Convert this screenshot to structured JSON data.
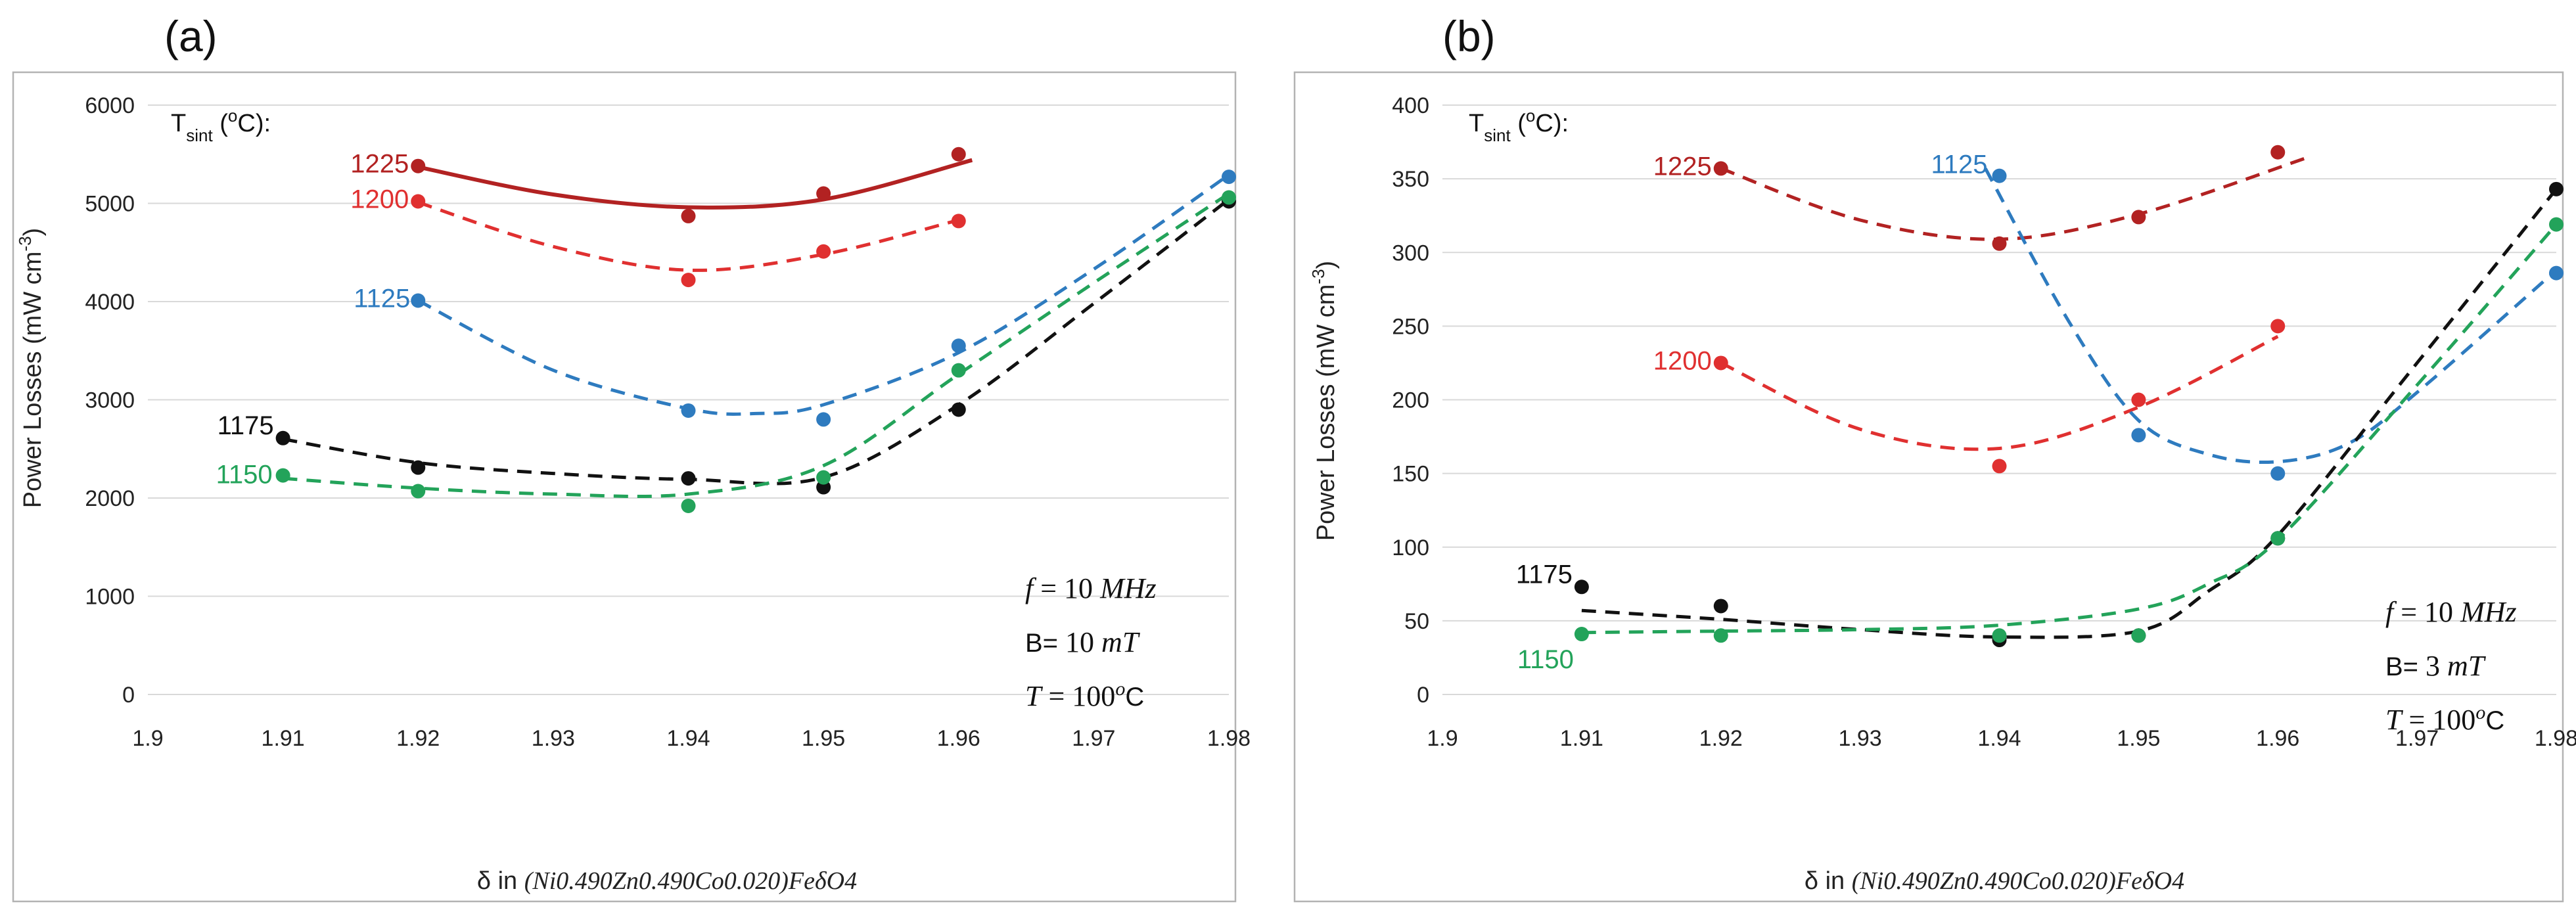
{
  "chart_data": [
    {
      "type": "scatter",
      "panel_label": "(a)",
      "title": "",
      "xlabel": "δ in (Ni0.490Zn0.490Co0.020)FeδO4",
      "xlabel_parts": {
        "prefix": "δ in",
        "formula": "(Ni0.490Zn0.490Co0.020)FeδO4"
      },
      "ylabel": "Power Losses (mW cm-3)",
      "xlim": [
        1.9,
        1.98
      ],
      "ylim": [
        0,
        6000
      ],
      "xticks": [
        "1.9",
        "1.91",
        "1.92",
        "1.93",
        "1.94",
        "1.95",
        "1.96",
        "1.97",
        "1.98"
      ],
      "yticks": [
        "0",
        "1000",
        "2000",
        "3000",
        "4000",
        "5000",
        "6000"
      ],
      "legend_title": "Tsint (oC):",
      "annotations": [
        "f = 10 MHz",
        "B= 10 mT",
        "T = 100oC"
      ],
      "series": [
        {
          "name": "1225",
          "color": "#b22222",
          "line": "solid",
          "x": [
            1.92,
            1.94,
            1.95,
            1.96
          ],
          "y": [
            5380,
            4870,
            5100,
            5500
          ],
          "fit": [
            [
              1.92,
              5370
            ],
            [
              1.93,
              5090
            ],
            [
              1.94,
              4960
            ],
            [
              1.95,
              5040
            ],
            [
              1.961,
              5440
            ]
          ]
        },
        {
          "name": "1200",
          "color": "#e03030",
          "line": "dashed",
          "x": [
            1.92,
            1.94,
            1.95,
            1.96
          ],
          "y": [
            5020,
            4220,
            4510,
            4820
          ],
          "fit": [
            [
              1.92,
              5010
            ],
            [
              1.93,
              4560
            ],
            [
              1.94,
              4320
            ],
            [
              1.95,
              4480
            ],
            [
              1.96,
              4830
            ]
          ]
        },
        {
          "name": "1125",
          "color": "#2e7bbf",
          "line": "dashed",
          "x": [
            1.92,
            1.94,
            1.95,
            1.96,
            1.98
          ],
          "y": [
            4010,
            2890,
            2800,
            3550,
            5270
          ],
          "fit": [
            [
              1.92,
              4010
            ],
            [
              1.93,
              3300
            ],
            [
              1.94,
              2910
            ],
            [
              1.945,
              2860
            ],
            [
              1.95,
              2950
            ],
            [
              1.96,
              3480
            ],
            [
              1.97,
              4330
            ],
            [
              1.98,
              5290
            ]
          ]
        },
        {
          "name": "1175",
          "color": "#111111",
          "line": "dashed",
          "x": [
            1.91,
            1.92,
            1.94,
            1.95,
            1.96,
            1.98
          ],
          "y": [
            2610,
            2310,
            2200,
            2110,
            2900,
            5020
          ],
          "fit": [
            [
              1.91,
              2600
            ],
            [
              1.92,
              2360
            ],
            [
              1.93,
              2250
            ],
            [
              1.94,
              2190
            ],
            [
              1.95,
              2210
            ],
            [
              1.96,
              2950
            ],
            [
              1.97,
              3980
            ],
            [
              1.98,
              5040
            ]
          ]
        },
        {
          "name": "1150",
          "color": "#23a35a",
          "line": "dashed",
          "x": [
            1.91,
            1.92,
            1.94,
            1.95,
            1.96,
            1.98
          ],
          "y": [
            2230,
            2070,
            1920,
            2210,
            3300,
            5060
          ],
          "fit": [
            [
              1.91,
              2200
            ],
            [
              1.92,
              2100
            ],
            [
              1.93,
              2040
            ],
            [
              1.94,
              2040
            ],
            [
              1.95,
              2330
            ],
            [
              1.96,
              3260
            ],
            [
              1.97,
              4190
            ],
            [
              1.98,
              5100
            ]
          ]
        }
      ]
    },
    {
      "type": "scatter",
      "panel_label": "(b)",
      "title": "",
      "xlabel": "δ in (Ni0.490Zn0.490Co0.020)FeδO4",
      "xlabel_parts": {
        "prefix": "δ in",
        "formula": "(Ni0.490Zn0.490Co0.020)FeδO4"
      },
      "ylabel": "Power Losses (mW cm-3)",
      "xlim": [
        1.9,
        1.98
      ],
      "ylim": [
        0,
        400
      ],
      "xticks": [
        "1.9",
        "1.91",
        "1.92",
        "1.93",
        "1.94",
        "1.95",
        "1.96",
        "1.97",
        "1.98"
      ],
      "yticks": [
        "0",
        "50",
        "100",
        "150",
        "200",
        "250",
        "300",
        "350",
        "400"
      ],
      "legend_title": "Tsint (oC):",
      "annotations": [
        "f = 10 MHz",
        "B= 3 mT",
        "T = 100oC"
      ],
      "series": [
        {
          "name": "1225",
          "color": "#b22222",
          "line": "dashed",
          "x": [
            1.92,
            1.94,
            1.95,
            1.96
          ],
          "y": [
            357,
            306,
            324,
            368
          ],
          "fit": [
            [
              1.92,
              357
            ],
            [
              1.93,
              322
            ],
            [
              1.94,
              309
            ],
            [
              1.95,
              326
            ],
            [
              1.962,
              364
            ]
          ]
        },
        {
          "name": "1200",
          "color": "#e03030",
          "line": "dashed",
          "x": [
            1.92,
            1.94,
            1.95,
            1.96
          ],
          "y": [
            225,
            155,
            200,
            250
          ],
          "fit": [
            [
              1.92,
              225
            ],
            [
              1.93,
              180
            ],
            [
              1.94,
              167
            ],
            [
              1.95,
              195
            ],
            [
              1.96,
              243
            ]
          ]
        },
        {
          "name": "1125",
          "color": "#2e7bbf",
          "line": "dashed",
          "x": [
            1.94,
            1.95,
            1.96,
            1.98
          ],
          "y": [
            352,
            176,
            150,
            286
          ],
          "fit": [
            [
              1.939,
              357
            ],
            [
              1.945,
              253
            ],
            [
              1.95,
              186
            ],
            [
              1.955,
              163
            ],
            [
              1.96,
              158
            ],
            [
              1.965,
              170
            ],
            [
              1.97,
              205
            ],
            [
              1.98,
              288
            ]
          ]
        },
        {
          "name": "1175",
          "color": "#111111",
          "line": "dashed",
          "x": [
            1.91,
            1.92,
            1.94,
            1.95,
            1.96,
            1.98
          ],
          "y": [
            73,
            60,
            37,
            40,
            106,
            343
          ],
          "fit": [
            [
              1.91,
              57
            ],
            [
              1.92,
              51
            ],
            [
              1.93,
              44
            ],
            [
              1.94,
              39
            ],
            [
              1.95,
              43
            ],
            [
              1.955,
              70
            ],
            [
              1.96,
              108
            ],
            [
              1.97,
              225
            ],
            [
              1.98,
              343
            ]
          ]
        },
        {
          "name": "1150",
          "color": "#23a35a",
          "line": "dashed",
          "x": [
            1.91,
            1.92,
            1.94,
            1.95,
            1.96,
            1.98
          ],
          "y": [
            41,
            40,
            40,
            40,
            106,
            319
          ],
          "fit": [
            [
              1.91,
              42
            ],
            [
              1.92,
              43
            ],
            [
              1.93,
              44
            ],
            [
              1.94,
              47
            ],
            [
              1.95,
              58
            ],
            [
              1.955,
              75
            ],
            [
              1.96,
              105
            ],
            [
              1.97,
              210
            ],
            [
              1.98,
              319
            ]
          ]
        }
      ]
    }
  ]
}
